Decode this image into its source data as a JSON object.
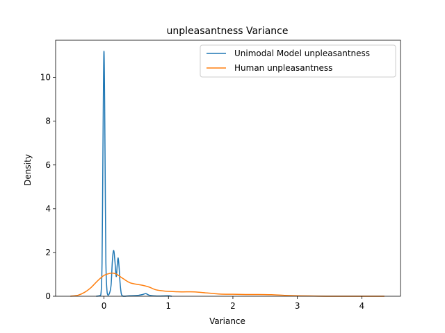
{
  "chart_data": {
    "type": "line",
    "title": "unpleasantness Variance",
    "xlabel": "Variance",
    "ylabel": "Density",
    "xlim": [
      -0.75,
      4.6
    ],
    "ylim": [
      0,
      11.7
    ],
    "xticks": [
      0,
      1,
      2,
      3,
      4
    ],
    "yticks": [
      0,
      2,
      4,
      6,
      8,
      10
    ],
    "grid": false,
    "legend_position": "top-right",
    "series": [
      {
        "name": "Unimodal Model unpleasantness",
        "color": "#1f77b4",
        "x": [
          -0.12,
          -0.05,
          -0.03,
          -0.02,
          -0.01,
          0.0,
          0.01,
          0.02,
          0.03,
          0.05,
          0.08,
          0.11,
          0.13,
          0.15,
          0.17,
          0.19,
          0.205,
          0.22,
          0.235,
          0.25,
          0.27,
          0.3,
          0.33,
          0.4,
          0.5,
          0.55,
          0.6,
          0.65,
          0.7,
          0.8,
          0.9,
          1.0,
          1.05
        ],
        "y": [
          0.0,
          0.05,
          1.5,
          5.0,
          9.0,
          11.2,
          9.0,
          5.0,
          1.5,
          0.15,
          0.1,
          0.5,
          1.6,
          2.1,
          1.6,
          0.9,
          1.4,
          1.75,
          1.3,
          0.6,
          0.1,
          0.0,
          0.0,
          0.02,
          0.03,
          0.05,
          0.08,
          0.12,
          0.05,
          0.01,
          0.01,
          0.02,
          0.0
        ]
      },
      {
        "name": "Human unpleasantness",
        "color": "#ff7f0e",
        "x": [
          -0.52,
          -0.4,
          -0.3,
          -0.2,
          -0.1,
          0.0,
          0.1,
          0.15,
          0.2,
          0.3,
          0.4,
          0.5,
          0.6,
          0.7,
          0.8,
          0.9,
          1.0,
          1.2,
          1.4,
          1.6,
          1.8,
          2.0,
          2.2,
          2.4,
          2.6,
          2.8,
          3.0,
          3.2,
          3.5,
          4.0,
          4.35
        ],
        "y": [
          0.0,
          0.05,
          0.18,
          0.4,
          0.7,
          0.95,
          1.05,
          1.05,
          1.0,
          0.8,
          0.62,
          0.55,
          0.5,
          0.42,
          0.3,
          0.25,
          0.22,
          0.2,
          0.2,
          0.15,
          0.1,
          0.09,
          0.08,
          0.08,
          0.07,
          0.04,
          0.02,
          0.01,
          0.0,
          0.0,
          0.0
        ]
      }
    ]
  }
}
